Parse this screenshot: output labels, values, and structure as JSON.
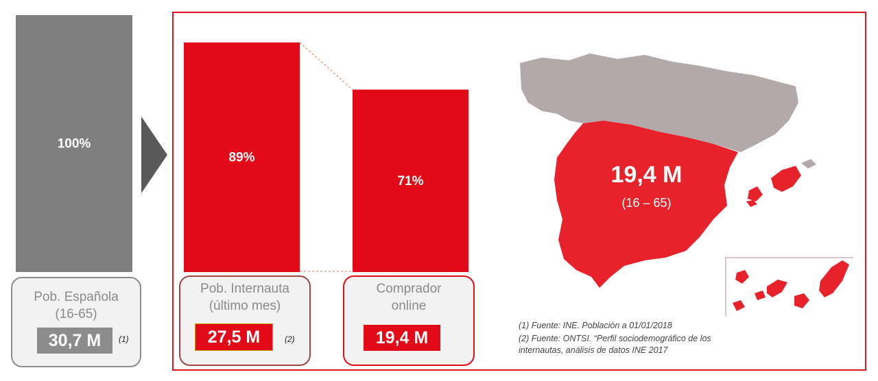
{
  "chart_data": {
    "type": "bar",
    "categories": [
      "Pob. Española",
      "Pob. Internauta",
      "Comprador online"
    ],
    "values": [
      100,
      89,
      71
    ],
    "value_labels": [
      "100%",
      "89%",
      "71%"
    ],
    "ylim": [
      0,
      100
    ],
    "grid": false,
    "colors": [
      "#7f7f7f",
      "#e30a17",
      "#e30a17"
    ]
  },
  "boxes": [
    {
      "line1": "Pob. Española",
      "line2": "(16-65)",
      "value": "30,7 M",
      "note": "(1)"
    },
    {
      "line1": "Pob. Internauta",
      "line2": "(último mes)",
      "value": "27,5 M",
      "note": "(2)"
    },
    {
      "line1": "Comprador",
      "line2": "online",
      "value": "19,4 M",
      "note": ""
    }
  ],
  "map": {
    "value": "19,4 M",
    "range": "(16 – 65)",
    "icon": "spain-map-icon",
    "colors": {
      "spain": "#e8222a",
      "france": "#b3a9aa"
    }
  },
  "footnotes": {
    "f1": "(1) Fuente: INE. Población a 01/01/2018",
    "f2_line1": "(2) Fuente: ONTSI. “Perfil sociodemográfico de los",
    "f2_line2": "internautas, análisis de datos INE 2017"
  }
}
